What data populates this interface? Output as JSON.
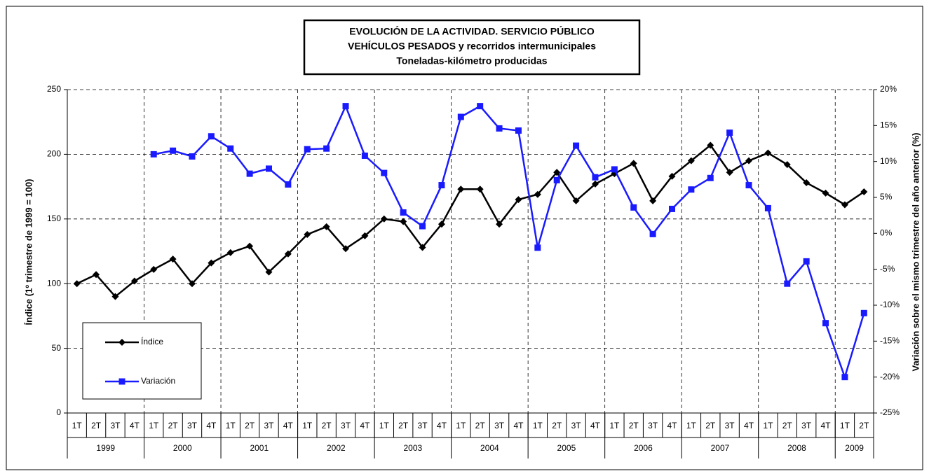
{
  "chart_data": {
    "type": "line",
    "title": [
      "EVOLUCIÓN DE LA ACTIVIDAD. SERVICIO PÚBLICO",
      "VEHÍCULOS PESADOS y recorridos intermunicipales",
      "Toneladas-kilómetro producidas"
    ],
    "y_label": "Índice (1º trimestre de 1999 = 100)",
    "y2_label": "Variación sobre el mismo trimestre del año anterior (%)",
    "categories": [
      "1T",
      "2T",
      "3T",
      "4T",
      "1T",
      "2T",
      "3T",
      "4T",
      "1T",
      "2T",
      "3T",
      "4T",
      "1T",
      "2T",
      "3T",
      "4T",
      "1T",
      "2T",
      "3T",
      "4T",
      "1T",
      "2T",
      "3T",
      "4T",
      "1T",
      "2T",
      "3T",
      "4T",
      "1T",
      "2T",
      "3T",
      "4T",
      "1T",
      "2T",
      "3T",
      "4T",
      "1T",
      "2T",
      "3T",
      "4T",
      "1T",
      "2T"
    ],
    "groups": [
      {
        "label": "1999",
        "count": 4
      },
      {
        "label": "2000",
        "count": 4
      },
      {
        "label": "2001",
        "count": 4
      },
      {
        "label": "2002",
        "count": 4
      },
      {
        "label": "2003",
        "count": 4
      },
      {
        "label": "2004",
        "count": 4
      },
      {
        "label": "2005",
        "count": 4
      },
      {
        "label": "2006",
        "count": 4
      },
      {
        "label": "2007",
        "count": 4
      },
      {
        "label": "2008",
        "count": 4
      },
      {
        "label": "2009",
        "count": 2
      }
    ],
    "series": [
      {
        "name": "Índice",
        "color": "#000000",
        "marker": "diamond",
        "values": [
          100,
          107,
          90,
          102,
          111,
          119,
          100,
          116,
          124,
          129,
          109,
          123,
          138,
          144,
          127,
          137,
          150,
          148,
          128,
          146,
          173,
          173,
          146,
          165,
          169,
          186,
          164,
          177,
          185,
          193,
          164,
          183,
          195,
          207,
          186,
          195,
          201,
          192,
          178,
          170,
          161,
          171
        ]
      },
      {
        "name": "Variación",
        "color": "#1a1aff",
        "marker": "square",
        "axis": "y2",
        "values": [
          null,
          null,
          null,
          null,
          11.0,
          11.5,
          10.7,
          13.5,
          11.8,
          8.3,
          9.0,
          6.8,
          11.7,
          11.8,
          17.7,
          10.8,
          8.4,
          2.9,
          1.0,
          6.7,
          16.2,
          17.7,
          14.6,
          14.3,
          -2.0,
          7.4,
          12.2,
          7.8,
          8.9,
          3.6,
          -0.1,
          3.4,
          6.1,
          7.7,
          14.0,
          6.7,
          3.5,
          -7.0,
          -3.9,
          -12.5,
          -20.0,
          -11.1
        ]
      }
    ],
    "ylim": [
      0,
      250
    ],
    "yticks": [
      0,
      50,
      100,
      150,
      200,
      250
    ],
    "y2lim": [
      -25,
      20
    ],
    "y2ticks": [
      {
        "value": -25,
        "label": "-25%"
      },
      {
        "value": -20,
        "label": "-20%"
      },
      {
        "value": -15,
        "label": "-15%"
      },
      {
        "value": -10,
        "label": "-10%"
      },
      {
        "value": -5,
        "label": "-5%"
      },
      {
        "value": 0,
        "label": "0%"
      },
      {
        "value": 5,
        "label": "5%"
      },
      {
        "value": 10,
        "label": "10%"
      },
      {
        "value": 15,
        "label": "15%"
      },
      {
        "value": 20,
        "label": "20%"
      }
    ],
    "grid": true
  }
}
